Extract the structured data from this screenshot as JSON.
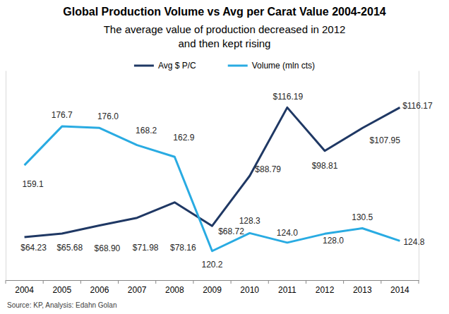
{
  "chart_data": {
    "type": "line",
    "title": "Global Production Volume vs Avg per Carat Value 2004-2014",
    "subtitle": "The average value of production decreased in 2012\nand then kept rising",
    "source": "Source: KP, Analysis: Edahn Golan",
    "categories": [
      "2004",
      "2005",
      "2006",
      "2007",
      "2008",
      "2009",
      "2010",
      "2011",
      "2012",
      "2013",
      "2014"
    ],
    "series": [
      {
        "name": "Avg $ P/C",
        "color": "#1F3864",
        "values": [
          64.23,
          65.68,
          68.9,
          71.98,
          78.16,
          68.72,
          88.79,
          116.19,
          98.81,
          107.95,
          116.17
        ],
        "value_labels": [
          "$64.23",
          "$65.68",
          "$68.90",
          "$71.98",
          "$78.16",
          "$68.72",
          "$88.79",
          "$116.19",
          "$98.81",
          "$107.95",
          "$116.17"
        ]
      },
      {
        "name": "Volume (mln cts)",
        "color": "#29ABE2",
        "axis": "y2",
        "values": [
          159.1,
          176.7,
          176.0,
          168.2,
          162.9,
          120.2,
          128.3,
          124.0,
          128.0,
          130.5,
          124.8
        ],
        "value_labels": [
          "159.1",
          "176.7",
          "176.0",
          "168.2",
          "162.9",
          "120.2",
          "128.3",
          "124.0",
          "128.0",
          "130.5",
          "124.8"
        ]
      }
    ],
    "ylim": [
      47,
      131
    ],
    "yticks": [],
    "y2lim": [
      107,
      202
    ],
    "y2ticks": [],
    "grid": false,
    "legend": "top",
    "data_labels": true,
    "tick_labels": "x"
  }
}
